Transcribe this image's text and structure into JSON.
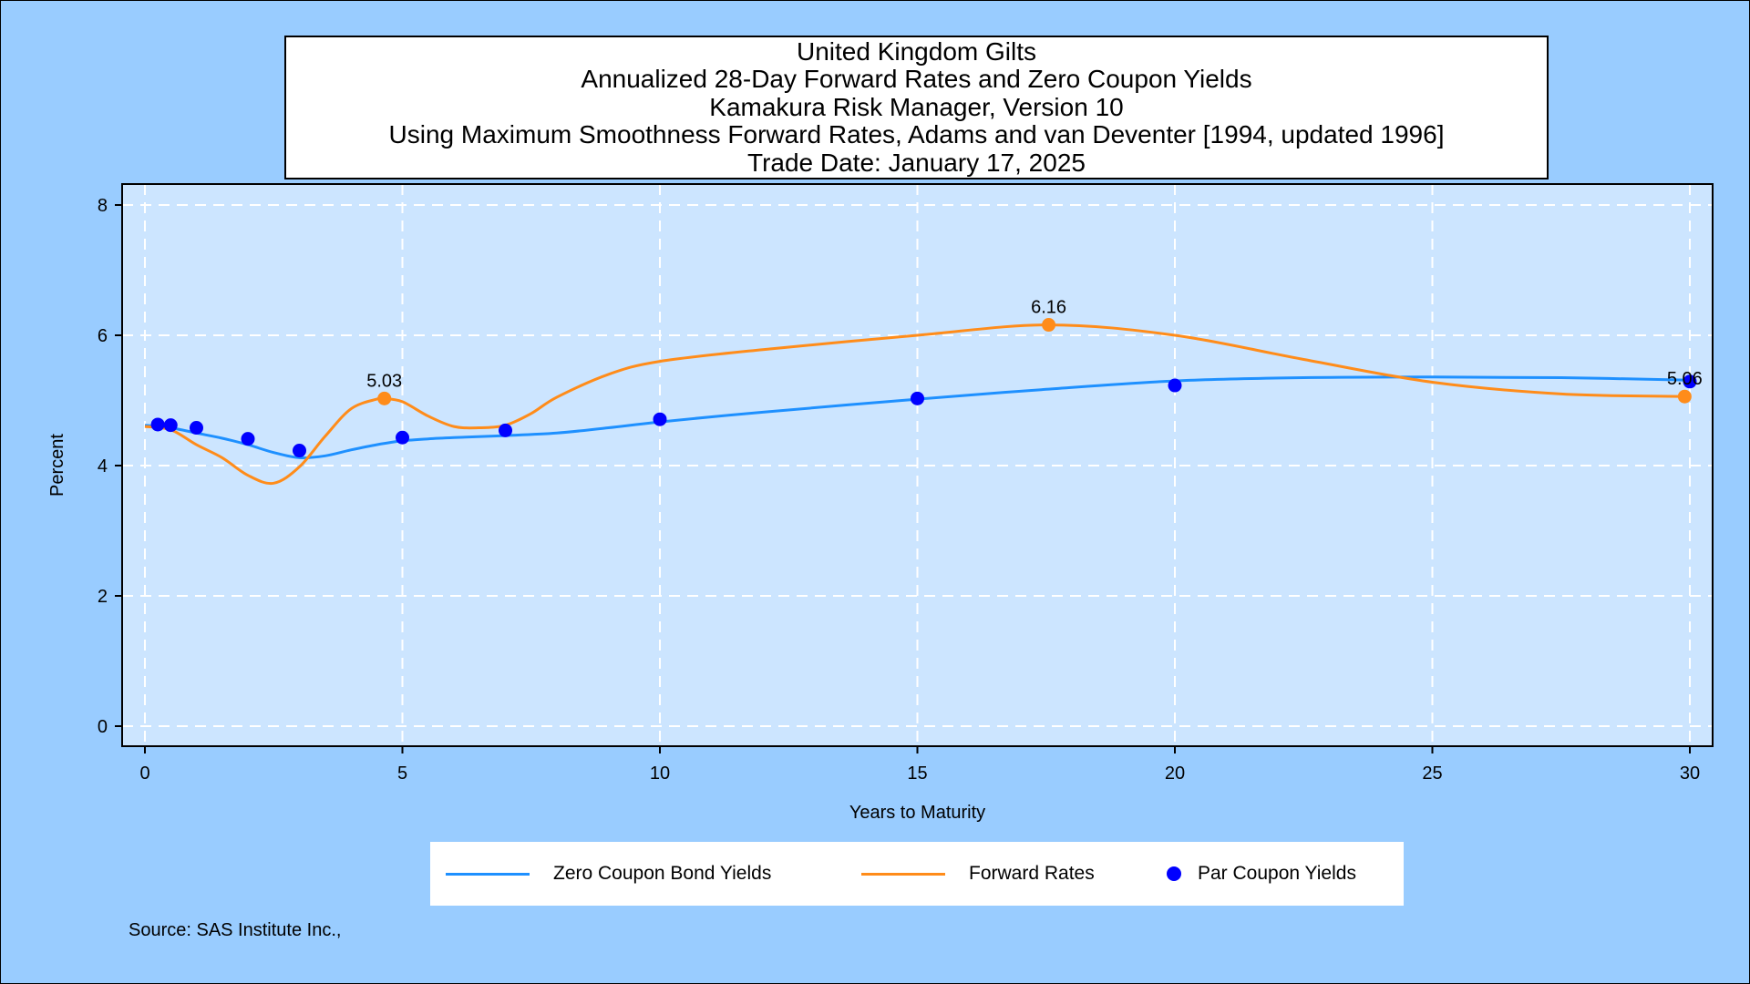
{
  "chart_data": {
    "type": "line",
    "title": [
      "United Kingdom Gilts",
      "Annualized 28-Day Forward Rates and Zero Coupon Yields",
      "Kamakura Risk Manager, Version 10",
      "Using Maximum Smoothness Forward Rates, Adams and van Deventer [1994, updated 1996]",
      "Trade Date: January 17, 2025"
    ],
    "xlabel": "Years to Maturity",
    "ylabel": "Percent",
    "xlim": [
      0,
      30
    ],
    "ylim": [
      0,
      8
    ],
    "xticks": [
      0,
      5,
      10,
      15,
      20,
      25,
      30
    ],
    "yticks": [
      0,
      2,
      4,
      6,
      8
    ],
    "grid": true,
    "legend_position": "bottom",
    "series": [
      {
        "name": "Zero Coupon Bond Yields",
        "color": "#1e90ff",
        "x": [
          0,
          0.5,
          1,
          1.5,
          2,
          2.5,
          3,
          3.5,
          4,
          4.5,
          5,
          5.5,
          6,
          7,
          8,
          9,
          10,
          12,
          15,
          17.5,
          20,
          22.5,
          25,
          27.5,
          30
        ],
        "y": [
          4.62,
          4.58,
          4.5,
          4.42,
          4.32,
          4.2,
          4.12,
          4.15,
          4.24,
          4.32,
          4.38,
          4.41,
          4.43,
          4.46,
          4.5,
          4.58,
          4.67,
          4.82,
          5.02,
          5.17,
          5.3,
          5.35,
          5.36,
          5.35,
          5.31
        ]
      },
      {
        "name": "Forward Rates",
        "color": "#ff8c1a",
        "x": [
          0,
          0.5,
          1,
          1.5,
          2,
          2.5,
          3,
          3.5,
          4,
          4.5,
          4.65,
          5,
          5.5,
          6,
          6.5,
          7,
          7.5,
          8,
          9,
          10,
          12,
          15,
          17.55,
          20,
          22.5,
          25,
          27.5,
          29.9
        ],
        "y": [
          4.6,
          4.55,
          4.32,
          4.12,
          3.85,
          3.73,
          3.98,
          4.45,
          4.87,
          5.02,
          5.03,
          4.98,
          4.76,
          4.6,
          4.58,
          4.62,
          4.8,
          5.05,
          5.4,
          5.6,
          5.78,
          6.0,
          6.16,
          6.0,
          5.63,
          5.28,
          5.1,
          5.06
        ]
      },
      {
        "name": "Par Coupon Yields",
        "color": "#0000ff",
        "type": "scatter",
        "x": [
          0.25,
          0.5,
          1,
          2,
          3,
          5,
          7,
          10,
          15,
          20,
          30
        ],
        "y": [
          4.63,
          4.62,
          4.58,
          4.41,
          4.23,
          4.43,
          4.54,
          4.71,
          5.03,
          5.23,
          5.29
        ]
      }
    ],
    "highlight_points": [
      {
        "series": "Forward Rates",
        "x": 4.65,
        "y": 5.03,
        "label": "5.03"
      },
      {
        "series": "Forward Rates",
        "x": 17.55,
        "y": 6.16,
        "label": "6.16"
      },
      {
        "series": "Forward Rates",
        "x": 29.9,
        "y": 5.06,
        "label": "5.06"
      }
    ]
  },
  "legend": {
    "items": [
      "Zero Coupon Bond Yields",
      "Forward Rates",
      "Par Coupon Yields"
    ]
  },
  "source": "Source: SAS Institute Inc.,",
  "colors": {
    "page_background": "#99ccff",
    "plot_background": "#cce5ff",
    "grid": "#ffffff"
  }
}
